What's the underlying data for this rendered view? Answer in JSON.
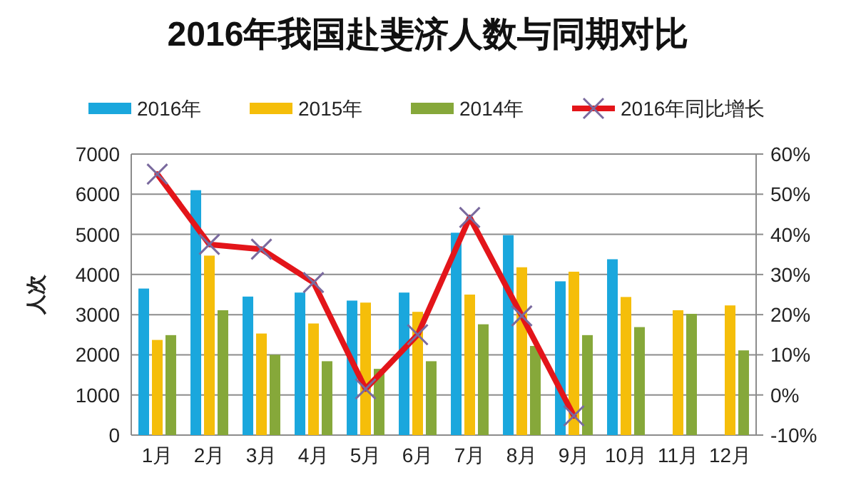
{
  "chart_data": {
    "type": "bar",
    "title": "2016年我国赴斐济人数与同期对比",
    "ylabel": "人次",
    "categories": [
      "1月",
      "2月",
      "3月",
      "4月",
      "5月",
      "6月",
      "7月",
      "8月",
      "9月",
      "10月",
      "11月",
      "12月"
    ],
    "series": [
      {
        "name": "2016年",
        "color": "#1aa7dd",
        "values": [
          3650,
          6100,
          3450,
          3550,
          3350,
          3550,
          5040,
          4980,
          3830,
          4380,
          null,
          null
        ]
      },
      {
        "name": "2015年",
        "color": "#f5be0a",
        "values": [
          2370,
          4470,
          2530,
          2780,
          3300,
          3070,
          3500,
          4180,
          4070,
          3440,
          3110,
          3230
        ]
      },
      {
        "name": "2014年",
        "color": "#86a83a",
        "values": [
          2490,
          3110,
          2000,
          1840,
          1650,
          1840,
          2760,
          2220,
          2490,
          2690,
          3020,
          2110
        ]
      },
      {
        "name": "2016年同比增长",
        "type": "line",
        "axis": "y2",
        "color": "#e3151a",
        "values": [
          55,
          37.5,
          36.3,
          28,
          1.5,
          15,
          44.2,
          19.7,
          -5.2,
          null,
          null,
          null
        ]
      }
    ],
    "ylim": [
      0,
      7000
    ],
    "yticks": [
      0,
      1000,
      2000,
      3000,
      4000,
      5000,
      6000,
      7000
    ],
    "y2lim": [
      -10,
      60
    ],
    "y2ticks": [
      {
        "value": -10,
        "label": "-10%"
      },
      {
        "value": 0,
        "label": "0%"
      },
      {
        "value": 10,
        "label": "10%"
      },
      {
        "value": 20,
        "label": "20%"
      },
      {
        "value": 30,
        "label": "30%"
      },
      {
        "value": 40,
        "label": "40%"
      },
      {
        "value": 50,
        "label": "50%"
      },
      {
        "value": 60,
        "label": "60%"
      }
    ],
    "grid": "y",
    "legend": "top",
    "marker": "cross",
    "line_style": "solid"
  }
}
